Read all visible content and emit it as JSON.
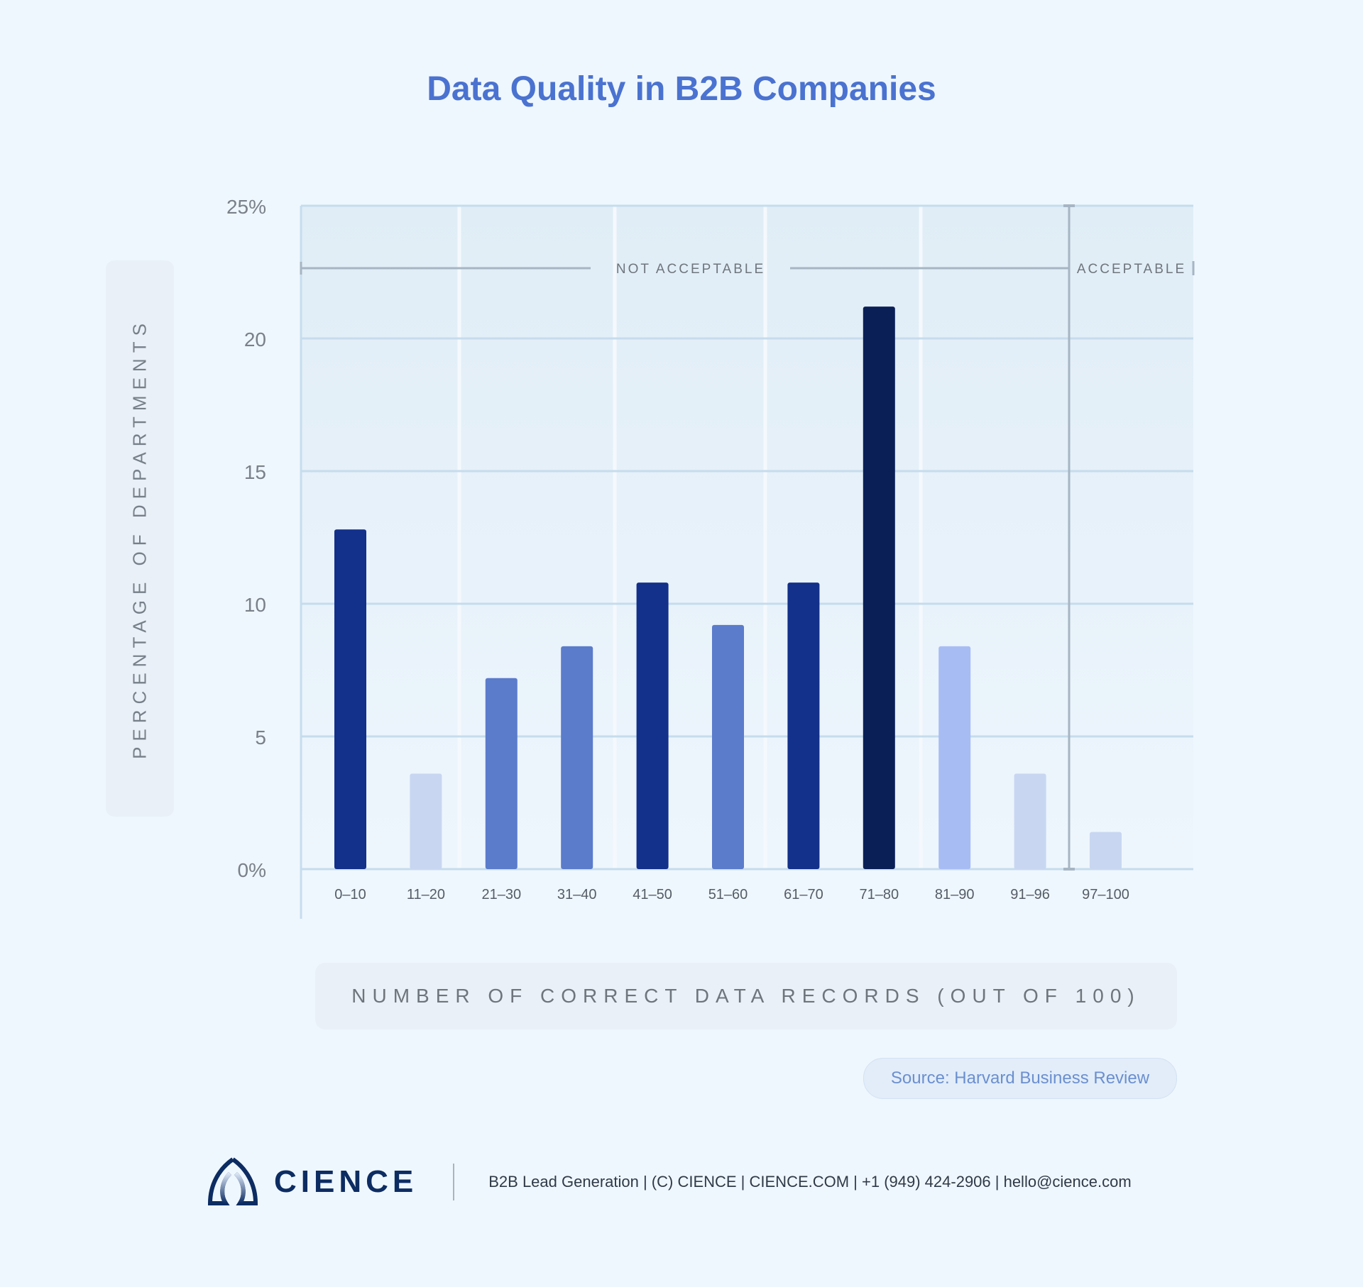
{
  "title": "Data Quality in B2B Companies",
  "chart_data": {
    "type": "bar",
    "title": "Data Quality in B2B Companies",
    "xlabel": "NUMBER OF CORRECT DATA RECORDS (OUT OF 100)",
    "ylabel": "PERCENTAGE OF DEPARTMENTS",
    "categories": [
      "0–10",
      "11–20",
      "21–30",
      "31–40",
      "41–50",
      "51–60",
      "61–70",
      "71–80",
      "81–90",
      "91–96",
      "97–100"
    ],
    "values": [
      12.8,
      3.6,
      7.2,
      8.4,
      10.8,
      9.2,
      10.8,
      21.2,
      8.4,
      3.6,
      1.4
    ],
    "colors": [
      "#13308a",
      "#c8d6f1",
      "#5b7bcb",
      "#5b7bcb",
      "#13308a",
      "#5b7bcb",
      "#13308a",
      "#0a1f56",
      "#a8bcf4",
      "#c8d6f1",
      "#c8d6f1"
    ],
    "ylim": [
      0,
      25
    ],
    "yticks": [
      "0%",
      "5",
      "10",
      "15",
      "20",
      "25%"
    ],
    "grid": true,
    "annotations": {
      "not_acceptable": "NOT ACCEPTABLE",
      "acceptable": "ACCEPTABLE"
    }
  },
  "source": "Source: Harvard Business Review",
  "footer": {
    "brand": "CIENCE",
    "text": "B2B Lead Generation | (C) CIENCE | CIENCE.COM | +1 (949) 424-2906 | hello@cience.com"
  }
}
